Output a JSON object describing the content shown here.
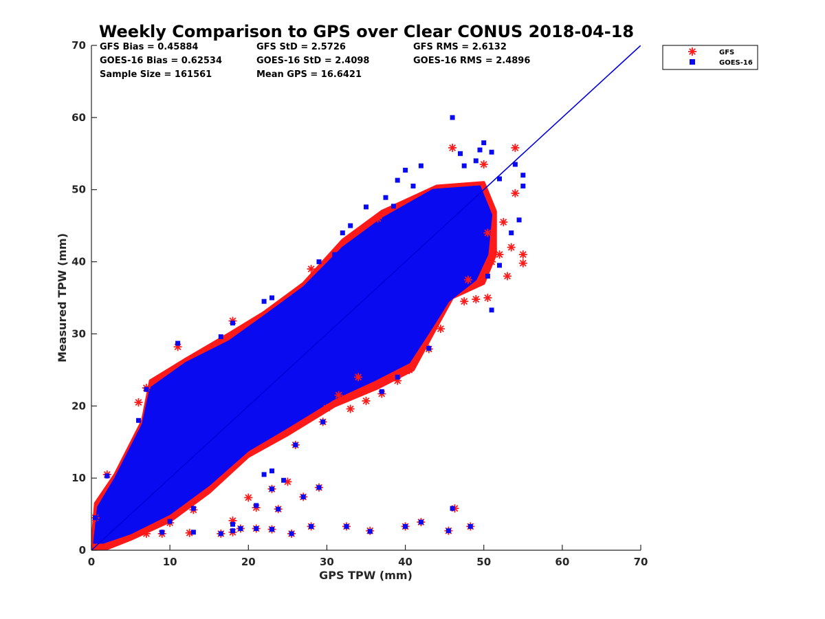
{
  "chart_data": {
    "type": "scatter",
    "title": "Weekly Comparison to GPS over Clear CONUS 2018-04-18",
    "xlabel": "GPS TPW (mm)",
    "ylabel": "Measured TPW (mm)",
    "xlim": [
      0,
      70
    ],
    "ylim": [
      0,
      70
    ],
    "xticks": [
      "0",
      "10",
      "20",
      "30",
      "40",
      "50",
      "60",
      "70"
    ],
    "yticks": [
      "0",
      "10",
      "20",
      "30",
      "40",
      "50",
      "60",
      "70"
    ],
    "grid": false,
    "legend_position": "outside top-right",
    "stats": {
      "gfs_bias": "GFS Bias = 0.45884",
      "goes_bias": "GOES-16 Bias = 0.62534",
      "sample_size": "Sample Size = 161561",
      "gfs_std": "GFS StD = 2.5726",
      "goes_std": "GOES-16 StD = 2.4098",
      "mean_gps": "Mean GPS = 16.6421",
      "gfs_rms": "GFS RMS = 2.6132",
      "goes_rms": "GOES-16 RMS = 2.4896"
    },
    "reference_line": {
      "name": "1:1 line",
      "color": "#0000dd",
      "x": [
        0,
        70
      ],
      "y": [
        0,
        70
      ]
    },
    "series": [
      {
        "name": "GFS",
        "marker": "asterisk",
        "color": "#ff1a1a",
        "outliers": [
          [
            55,
            41
          ],
          [
            55,
            39.8
          ],
          [
            53.5,
            42
          ],
          [
            53,
            38
          ],
          [
            54,
            49.5
          ],
          [
            54,
            55.8
          ],
          [
            52,
            41
          ],
          [
            51,
            40
          ],
          [
            50.5,
            35
          ],
          [
            50,
            53.5
          ],
          [
            46,
            55.8
          ],
          [
            46.3,
            5.8
          ],
          [
            45.5,
            2.7
          ],
          [
            48.3,
            3.3
          ],
          [
            42,
            3.9
          ],
          [
            40,
            3.3
          ],
          [
            35.5,
            2.7
          ],
          [
            32.5,
            3.3
          ],
          [
            28,
            3.3
          ],
          [
            25.5,
            2.3
          ],
          [
            23,
            2.9
          ],
          [
            21,
            3.0
          ],
          [
            19,
            3.0
          ],
          [
            18,
            4.1
          ],
          [
            18,
            2.5
          ],
          [
            16.5,
            2.3
          ],
          [
            29,
            8.7
          ],
          [
            27,
            7.4
          ],
          [
            23.8,
            5.7
          ],
          [
            21,
            5.9
          ],
          [
            20,
            7.3
          ],
          [
            25,
            9.5
          ],
          [
            29.5,
            17.8
          ],
          [
            26,
            14.6
          ],
          [
            28,
            39
          ],
          [
            18,
            31.8
          ],
          [
            11,
            28.2
          ],
          [
            7,
            22.5
          ],
          [
            6,
            20.5
          ],
          [
            2,
            10.5
          ],
          [
            36.5,
            46
          ],
          [
            35,
            20.7
          ],
          [
            37,
            21.7
          ],
          [
            33,
            19.6
          ],
          [
            39,
            23.5
          ],
          [
            43,
            27.9
          ],
          [
            44.5,
            30.7
          ],
          [
            47.5,
            34.5
          ],
          [
            49,
            34.8
          ],
          [
            48,
            37.5
          ],
          [
            30,
            19.7
          ],
          [
            31.5,
            21.5
          ],
          [
            40.5,
            25
          ],
          [
            13,
            5.6
          ],
          [
            12.5,
            2.4
          ],
          [
            7,
            2.3
          ],
          [
            9,
            2.3
          ],
          [
            10,
            3.8
          ],
          [
            23,
            8.5
          ],
          [
            34,
            24
          ],
          [
            0.5,
            4.5
          ],
          [
            52.5,
            45.5
          ],
          [
            50.5,
            44
          ]
        ]
      },
      {
        "name": "GOES-16",
        "marker": "square",
        "color": "#0a0af0",
        "outliers": [
          [
            46,
            60
          ],
          [
            50,
            56.5
          ],
          [
            51,
            55.2
          ],
          [
            49.5,
            55.5
          ],
          [
            54,
            53.5
          ],
          [
            55,
            50.5
          ],
          [
            54.5,
            45.8
          ],
          [
            53.5,
            44
          ],
          [
            52,
            51.5
          ],
          [
            42,
            53.3
          ],
          [
            40,
            52.7
          ],
          [
            39,
            51.3
          ],
          [
            41,
            50.5
          ],
          [
            38.5,
            47.7
          ],
          [
            37.5,
            48.9
          ],
          [
            35,
            47.6
          ],
          [
            33,
            45
          ],
          [
            47.5,
            53.3
          ],
          [
            47,
            55
          ],
          [
            49,
            54
          ],
          [
            55,
            52
          ],
          [
            51,
            33.3
          ],
          [
            46,
            5.8
          ],
          [
            48.3,
            3.3
          ],
          [
            45.5,
            2.7
          ],
          [
            42,
            3.9
          ],
          [
            40,
            3.3
          ],
          [
            35.5,
            2.6
          ],
          [
            32.5,
            3.3
          ],
          [
            28,
            3.3
          ],
          [
            25.5,
            2.3
          ],
          [
            23,
            2.9
          ],
          [
            21,
            3.0
          ],
          [
            19,
            3.0
          ],
          [
            18,
            3.6
          ],
          [
            18,
            2.7
          ],
          [
            16.5,
            2.3
          ],
          [
            29,
            8.7
          ],
          [
            27,
            7.4
          ],
          [
            23.8,
            5.7
          ],
          [
            23,
            11
          ],
          [
            22,
            10.5
          ],
          [
            21,
            6.2
          ],
          [
            26,
            14.6
          ],
          [
            29.5,
            17.8
          ],
          [
            18,
            31.5
          ],
          [
            16.5,
            29.6
          ],
          [
            11,
            28.7
          ],
          [
            7,
            22.3
          ],
          [
            6,
            18
          ],
          [
            2,
            10.3
          ],
          [
            23,
            35
          ],
          [
            22,
            34.5
          ],
          [
            24,
            33.5
          ],
          [
            28,
            36
          ],
          [
            30,
            39
          ],
          [
            32,
            44
          ],
          [
            31,
            41
          ],
          [
            34,
            43
          ],
          [
            29,
            40
          ],
          [
            13,
            5.8
          ],
          [
            13,
            2.5
          ],
          [
            9,
            2.5
          ],
          [
            10,
            4
          ],
          [
            23,
            8.5
          ],
          [
            24.5,
            9.7
          ],
          [
            0.5,
            4.5
          ],
          [
            37,
            22
          ],
          [
            39,
            24
          ],
          [
            43,
            28
          ],
          [
            50.5,
            38
          ],
          [
            52,
            39.5
          ]
        ]
      }
    ]
  },
  "legend": {
    "gfs_label": "GFS",
    "goes_label": "GOES-16"
  }
}
